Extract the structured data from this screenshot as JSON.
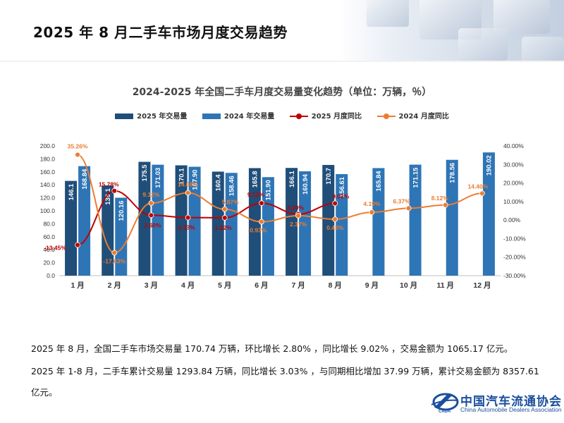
{
  "page_title": "2025 年 8 月二手车市场月度交易趋势",
  "chart_data": {
    "type": "bar",
    "title": "2024-2025 年全国二手车月度交易量变化趋势（单位：万辆，％）",
    "categories": [
      "1 月",
      "2 月",
      "3 月",
      "4 月",
      "5 月",
      "6 月",
      "7 月",
      "8 月",
      "9 月",
      "10 月",
      "11 月",
      "12 月"
    ],
    "series": [
      {
        "name": "2025 年交易量",
        "kind": "bar",
        "axis": "left",
        "color": "#1f4e79",
        "values": [
          146.1,
          139.1,
          175.5,
          170.1,
          160.4,
          165.8,
          166.1,
          170.7,
          null,
          null,
          null,
          null
        ],
        "labels": [
          "146.1",
          "139.1",
          "175.5",
          "170.1",
          "160.4",
          "165.8",
          "166.1",
          "170.7",
          "",
          "",
          "",
          ""
        ]
      },
      {
        "name": "2024 年交易量",
        "kind": "bar",
        "axis": "left",
        "color": "#2e75b6",
        "values": [
          168.84,
          120.16,
          171.03,
          167.9,
          158.46,
          151.9,
          160.94,
          156.61,
          165.84,
          171.15,
          178.56,
          190.02
        ],
        "labels": [
          "168.84",
          "120.16",
          "171.03",
          "167.90",
          "158.46",
          "151.90",
          "160.94",
          "156.61",
          "165.84",
          "171.15",
          "178.56",
          "190.02"
        ]
      },
      {
        "name": "2025 月度同比",
        "kind": "line",
        "axis": "right",
        "color": "#c00000",
        "values": [
          -13.45,
          15.78,
          2.6,
          1.33,
          1.22,
          9.12,
          3.2,
          9.02,
          null,
          null,
          null,
          null
        ],
        "labels": [
          "-13.45%",
          "15.78%",
          "2.60%",
          "1.33%",
          "1.22%",
          "9.12%",
          "3.20%",
          "9.02%",
          "",
          "",
          "",
          ""
        ]
      },
      {
        "name": "2024 月度同比",
        "kind": "line",
        "axis": "right",
        "color": "#ed7d31",
        "values": [
          35.26,
          -17.63,
          9.12,
          14.68,
          5.87,
          -0.93,
          2.37,
          0.43,
          4.19,
          6.37,
          8.12,
          14.4
        ],
        "labels": [
          "35.26%",
          "-17.63%",
          "9.12%",
          "14.68%",
          "5.87%",
          "-0.93%",
          "2.37%",
          "0.43%",
          "4.19%",
          "6.37%",
          "8.12%",
          "14.40%"
        ]
      }
    ],
    "left_axis": {
      "min": 0,
      "max": 200,
      "step": 20,
      "ticks": [
        "0.0",
        "20.0",
        "40.0",
        "60.0",
        "80.0",
        "100.0",
        "120.0",
        "140.0",
        "160.0",
        "180.0",
        "200.0"
      ]
    },
    "right_axis": {
      "min": -30,
      "max": 40,
      "step": 10,
      "ticks": [
        "-30.00%",
        "-20.00%",
        "-10.00%",
        "0.00%",
        "10.00%",
        "20.00%",
        "30.00%",
        "40.00%"
      ]
    },
    "grid": false,
    "legend_position": "top"
  },
  "paragraphs": [
    "2025 年 8 月，全国二手车市场交易量 170.74 万辆，环比增长 2.80% ，同比增长 9.02% ，交易金额为 1065.17 亿元。",
    "2025 年 1-8 月，二手车累计交易量 1293.84 万辆，同比增长 3.03% ，与同期相比增加 37.99 万辆，累计交易金额为 8357.61",
    "亿元。"
  ],
  "logo": {
    "cn": "中国汽车流通协会",
    "en": "China Automobile Dealers Association",
    "abbr": "CADA",
    "color": "#1b4f9c"
  }
}
